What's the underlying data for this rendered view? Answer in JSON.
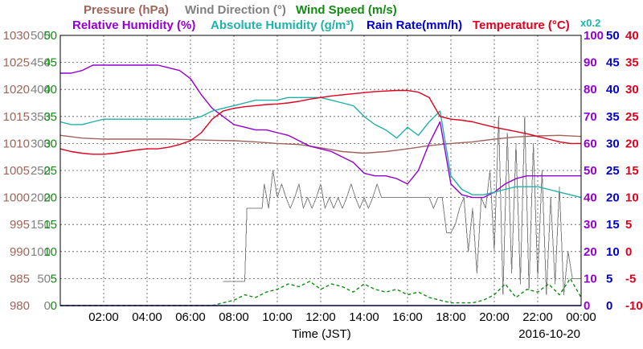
{
  "chart_data": {
    "type": "line",
    "date_label": "2016-10-20",
    "xlabel": "Time (JST)",
    "x_ticks": [
      "02:00",
      "04:00",
      "06:00",
      "08:00",
      "10:00",
      "12:00",
      "14:00",
      "16:00",
      "18:00",
      "20:00",
      "22:00",
      "00:00"
    ],
    "x_range_hours": [
      0,
      24
    ],
    "grid": true,
    "legend": [
      {
        "text": "Pressure (hPa)",
        "color": "#a0645a"
      },
      {
        "text": "Wind Direction (°)",
        "color": "#808080"
      },
      {
        "text": "Wind Speed (m/s)",
        "color": "#128c12"
      },
      {
        "text": "Relative Humidity (%)",
        "color": "#9400d3"
      },
      {
        "text": "Absolute Humidity (g/m³)",
        "color": "#20b2aa"
      },
      {
        "text": "Rain Rate(mm/h)",
        "color": "#0000cd"
      },
      {
        "text": "Temperature (°C)",
        "color": "#e0001e"
      }
    ],
    "abs_humidity_scale_note": "x0.2",
    "axes": {
      "pressure": {
        "range": [
          980,
          1030
        ],
        "ticks": [
          "1030",
          "1025",
          "1020",
          "1015",
          "1010",
          "1005",
          "1000",
          "995",
          "990",
          "985",
          "980"
        ],
        "color": "#a0645a"
      },
      "wind_direction": {
        "range": [
          0,
          500
        ],
        "ticks": [
          "500",
          "450",
          "400",
          "350",
          "300",
          "250",
          "200",
          "150",
          "100",
          "50",
          "0"
        ],
        "color": "#808080"
      },
      "wind_speed": {
        "range": [
          0,
          50
        ],
        "ticks": [
          "50",
          "45",
          "40",
          "35",
          "30",
          "25",
          "20",
          "15",
          "10",
          "5",
          "0"
        ],
        "color": "#128c12"
      },
      "relative_humidity": {
        "range": [
          0,
          100
        ],
        "ticks": [
          "100",
          "90",
          "80",
          "70",
          "60",
          "50",
          "40",
          "30",
          "20",
          "10",
          "0"
        ],
        "color": "#9400d3"
      },
      "rain_rate": {
        "range": [
          0,
          50
        ],
        "ticks": [
          "50",
          "45",
          "40",
          "35",
          "30",
          "25",
          "20",
          "15",
          "10",
          "5",
          "0"
        ],
        "color": "#0000cd"
      },
      "temperature": {
        "range": [
          -10,
          40
        ],
        "ticks": [
          "40",
          "35",
          "30",
          "25",
          "20",
          "15",
          "10",
          "5",
          "0",
          "-5",
          "-10"
        ],
        "color": "#e0001e"
      }
    },
    "series": [
      {
        "name": "Pressure (hPa)",
        "axis": "pressure",
        "x": [
          0,
          1,
          2,
          3,
          4,
          5,
          6,
          7,
          8,
          9,
          10,
          11,
          12,
          13,
          14,
          15,
          16,
          17,
          18,
          19,
          20,
          21,
          22,
          23,
          24
        ],
        "values": [
          1011.5,
          1011,
          1010.8,
          1010.8,
          1010.8,
          1010.8,
          1010.7,
          1010.6,
          1010.5,
          1010.3,
          1010,
          1009.8,
          1009.2,
          1008.5,
          1008.2,
          1008.5,
          1009,
          1009.6,
          1010,
          1010.3,
          1010.8,
          1011.2,
          1011.4,
          1011.5,
          1011.3
        ]
      },
      {
        "name": "Wind Direction (°)",
        "axis": "wind_direction",
        "x": [
          0,
          7.4,
          7.5,
          8.5,
          8.6,
          9.3,
          9.4,
          9.6,
          9.8,
          10.0,
          10.2,
          10.4,
          10.6,
          10.8,
          11.0,
          11.2,
          11.4,
          11.6,
          11.8,
          12.0,
          12.2,
          12.4,
          12.6,
          12.8,
          13.0,
          13.2,
          13.4,
          13.6,
          13.8,
          14.0,
          14.2,
          14.4,
          14.6,
          14.8,
          15.0,
          15.5,
          16.0,
          16.5,
          17.0,
          17.2,
          17.4,
          17.6,
          17.8,
          18.0,
          18.2,
          18.4,
          18.6,
          18.8,
          19.0,
          19.2,
          19.4,
          19.6,
          19.8,
          20.0,
          20.2,
          20.4,
          20.6,
          20.8,
          21.0,
          21.2,
          21.4,
          21.6,
          21.8,
          22.0,
          22.2,
          22.4,
          22.6,
          22.8,
          23.0,
          23.2,
          23.4,
          23.6,
          23.8,
          24.0
        ],
        "values": [
          null,
          null,
          45,
          45,
          180,
          180,
          225,
          180,
          250,
          200,
          225,
          200,
          180,
          200,
          225,
          180,
          200,
          180,
          200,
          225,
          180,
          200,
          180,
          200,
          180,
          200,
          225,
          200,
          180,
          200,
          180,
          200,
          225,
          200,
          200,
          200,
          200,
          200,
          200,
          180,
          200,
          200,
          135,
          135,
          150,
          180,
          200,
          100,
          180,
          60,
          200,
          180,
          250,
          100,
          350,
          20,
          320,
          60,
          300,
          40,
          350,
          30,
          300,
          50,
          250,
          20,
          200,
          40,
          220,
          20,
          100,
          50,
          50,
          50
        ]
      },
      {
        "name": "Wind Speed (m/s)",
        "axis": "wind_speed",
        "x": [
          0,
          7,
          7.5,
          8,
          8.5,
          9,
          9.5,
          10,
          10.5,
          11,
          11.5,
          12,
          12.5,
          13,
          13.5,
          14,
          14.5,
          15,
          15.5,
          16,
          16.5,
          17,
          17.5,
          18,
          18.5,
          19,
          19.5,
          20,
          20.5,
          21,
          21.5,
          22,
          22.5,
          23,
          23.5,
          24
        ],
        "values": [
          0,
          0,
          0.5,
          1,
          2,
          1.5,
          2.5,
          3,
          4,
          3.5,
          4.5,
          3,
          4,
          3.5,
          2.5,
          4,
          3,
          2.5,
          3,
          2,
          2.5,
          1.5,
          1,
          0.5,
          0.5,
          0.5,
          1,
          2,
          4,
          1.5,
          3,
          2.5,
          4,
          2,
          5,
          1.5
        ]
      },
      {
        "name": "Relative Humidity (%)",
        "axis": "relative_humidity",
        "x": [
          0,
          0.5,
          1,
          1.5,
          2,
          2.5,
          3,
          3.5,
          4,
          4.5,
          5,
          5.5,
          6,
          6.5,
          7,
          7.5,
          8,
          8.5,
          9,
          9.5,
          10,
          10.5,
          11,
          11.5,
          12,
          12.5,
          13,
          13.5,
          14,
          14.5,
          15,
          15.5,
          16,
          16.5,
          17,
          17.5,
          18,
          18.5,
          19,
          19.5,
          20,
          20.5,
          21,
          21.5,
          22,
          22.5,
          23,
          23.5,
          24
        ],
        "values": [
          86,
          86,
          87,
          89,
          89,
          89,
          89,
          89,
          89,
          89,
          88,
          87,
          84,
          78,
          73,
          70,
          67,
          66,
          65,
          65,
          64,
          63,
          61,
          59,
          58,
          57,
          55,
          53,
          49,
          48,
          48,
          47,
          45,
          50,
          60,
          68,
          45,
          41,
          40,
          40,
          42,
          45,
          47,
          48,
          48,
          48,
          48,
          48,
          48
        ]
      },
      {
        "name": "Absolute Humidity (g/m³)",
        "axis": "relative_humidity",
        "x": [
          0,
          0.5,
          1,
          1.5,
          2,
          2.5,
          3,
          3.5,
          4,
          4.5,
          5,
          5.5,
          6,
          6.5,
          7,
          7.5,
          8,
          8.5,
          9,
          9.5,
          10,
          10.5,
          11,
          11.5,
          12,
          12.5,
          13,
          13.5,
          14,
          14.5,
          15,
          15.5,
          16,
          16.5,
          17,
          17.5,
          18,
          18.5,
          19,
          19.5,
          20,
          20.5,
          21,
          21.5,
          22,
          22.5,
          23,
          23.5,
          24
        ],
        "values": [
          68,
          67,
          67,
          68,
          69,
          69,
          69,
          69,
          69,
          69,
          69,
          69,
          69,
          70,
          72,
          73,
          74,
          75,
          76,
          76,
          76,
          77,
          77,
          77,
          77,
          76,
          75,
          74,
          70,
          67,
          65,
          62,
          66,
          63,
          68,
          72,
          48,
          43,
          41,
          41,
          42,
          43,
          44,
          44,
          44,
          43,
          42,
          41,
          40
        ]
      },
      {
        "name": "Rain Rate(mm/h)",
        "axis": "rain_rate",
        "x": [
          0,
          24
        ],
        "values": [
          0,
          0
        ]
      },
      {
        "name": "Temperature (°C)",
        "axis": "temperature",
        "x": [
          0,
          0.5,
          1,
          1.5,
          2,
          2.5,
          3,
          3.5,
          4,
          4.5,
          5,
          5.5,
          6,
          6.5,
          7,
          7.5,
          8,
          8.5,
          9,
          9.5,
          10,
          10.5,
          11,
          11.5,
          12,
          12.5,
          13,
          13.5,
          14,
          14.5,
          15,
          15.5,
          16,
          16.5,
          17,
          17.5,
          18,
          18.5,
          19,
          19.5,
          20,
          20.5,
          21,
          21.5,
          22,
          22.5,
          23,
          23.5,
          24
        ],
        "values": [
          19,
          18.5,
          18.2,
          18,
          18,
          18.2,
          18.5,
          18.8,
          19,
          19,
          19.3,
          19.8,
          20.5,
          22,
          24.5,
          26,
          26.5,
          26.8,
          27,
          27.2,
          27.3,
          27.5,
          27.8,
          28.2,
          28.5,
          28.8,
          29,
          29.2,
          29.4,
          29.6,
          29.7,
          29.8,
          29.8,
          29.5,
          28.5,
          25,
          24.5,
          24.3,
          24,
          23.5,
          23,
          22.6,
          22.2,
          21.8,
          21.3,
          20.8,
          20.3,
          20,
          20
        ]
      }
    ]
  }
}
